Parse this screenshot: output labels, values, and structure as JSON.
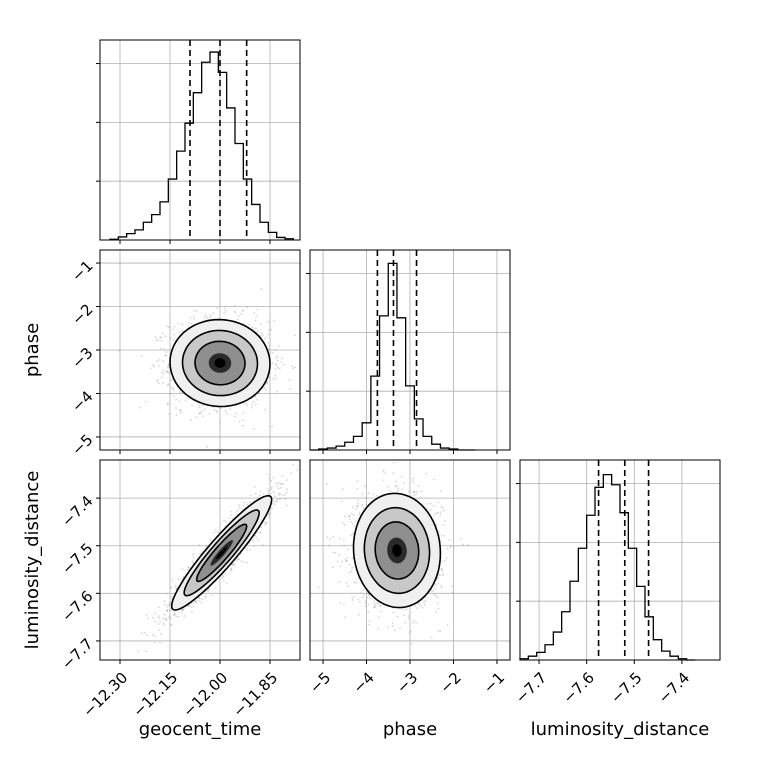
{
  "chart_data": {
    "type": "corner",
    "parameters": [
      "geocent_time",
      "phase",
      "luminosity_distance"
    ],
    "grid": true,
    "labels": {
      "x": [
        "geocent_time",
        "phase",
        "luminosity_distance"
      ],
      "y": [
        "phase",
        "luminosity_distance"
      ]
    },
    "ranges": {
      "geocent_time": [
        -12.36,
        -11.76
      ],
      "phase": [
        -5.3,
        -0.7
      ],
      "luminosity_distance": [
        -7.74,
        -7.32
      ]
    },
    "ticks": {
      "geocent_time": {
        "values": [
          -12.3,
          -12.15,
          -12.0,
          -11.85
        ],
        "labels": [
          "−12.30",
          "−12.15",
          "−12.00",
          "−11.85"
        ]
      },
      "phase": {
        "values": [
          -5,
          -4,
          -3,
          -2,
          -1
        ],
        "labels": [
          "−5",
          "−4",
          "−3",
          "−2",
          "−1"
        ]
      },
      "luminosity_distance": {
        "values": [
          -7.7,
          -7.6,
          -7.5,
          -7.4
        ],
        "labels": [
          "−7.7",
          "−7.6",
          "−7.5",
          "−7.4"
        ]
      }
    },
    "histograms": {
      "geocent_time": {
        "bin_start": -12.33,
        "bin_width": 0.025,
        "counts": [
          0.3,
          1.2,
          2.5,
          4,
          7,
          10,
          15,
          24,
          35,
          46,
          58,
          70,
          74,
          66,
          52,
          38,
          24,
          14,
          7,
          3,
          1,
          0.5
        ],
        "ymax": 75,
        "quantiles": [
          -12.09,
          -12.0,
          -11.92
        ]
      },
      "phase": {
        "bin_start": -5.3,
        "bin_width": 0.2,
        "counts": [
          0,
          0.5,
          1,
          2,
          4,
          7,
          14,
          38,
          69,
          96,
          68,
          33,
          16,
          7,
          3,
          1,
          0.5,
          0,
          0
        ],
        "ymax": 98,
        "quantiles": [
          -3.75,
          -3.38,
          -2.85
        ]
      },
      "luminosity_distance": {
        "bin_start": -7.74,
        "bin_width": 0.0175,
        "counts": [
          0.5,
          1.5,
          3,
          6,
          11,
          19,
          31,
          44,
          57,
          68,
          73,
          69,
          58,
          44,
          29,
          17,
          8,
          3.5,
          1.5,
          0.5,
          0
        ],
        "ymax": 75,
        "quantiles": [
          -7.575,
          -7.52,
          -7.47
        ]
      }
    },
    "joint": {
      "phase_vs_geocent_time": {
        "x_param": "geocent_time",
        "y_param": "phase",
        "mean": [
          -12.0,
          -3.3
        ],
        "std": [
          0.075,
          0.5
        ],
        "corr": -0.02
      },
      "luminosity_distance_vs_geocent_time": {
        "x_param": "geocent_time",
        "y_param": "luminosity_distance",
        "mean": [
          -11.995,
          -7.515
        ],
        "std": [
          0.075,
          0.06
        ],
        "corr": 0.93
      },
      "luminosity_distance_vs_phase": {
        "x_param": "phase",
        "y_param": "luminosity_distance",
        "mean": [
          -3.3,
          -7.51
        ],
        "std": [
          0.5,
          0.06
        ],
        "corr": -0.05
      }
    },
    "contour_levels_sigma": [
      1.0,
      1.5,
      2.0
    ]
  }
}
